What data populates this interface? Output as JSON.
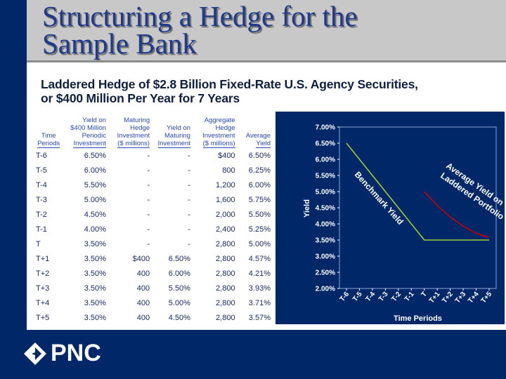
{
  "title": "Structuring a Hedge for the Sample Bank",
  "title_lines": [
    "Structuring a Hedge for the",
    "Sample Bank"
  ],
  "subtitle_lines": [
    "Laddered Hedge of $2.8 Billion Fixed-Rate U.S. Agency Securities,",
    "or $400 Million Per Year for 7 Years"
  ],
  "table": {
    "headers": [
      [
        "Time",
        "Periods"
      ],
      [
        "Yield on",
        "$400 Million",
        "Periodic",
        "Investment"
      ],
      [
        "Maturing",
        "Hedge",
        "Investment",
        "($ millions)"
      ],
      [
        "Yield on",
        "Maturing",
        "Investment"
      ],
      [
        "Aggregate",
        "Hedge",
        "Investment",
        "($ millions)"
      ],
      [
        "Average",
        "Yield"
      ]
    ],
    "rows": [
      [
        "T-6",
        "6.50%",
        "-",
        "-",
        "$400",
        "6.50%"
      ],
      [
        "T-5",
        "6.00%",
        "-",
        "-",
        "800",
        "6.25%"
      ],
      [
        "T-4",
        "5.50%",
        "-",
        "-",
        "1,200",
        "6.00%"
      ],
      [
        "T-3",
        "5.00%",
        "-",
        "-",
        "1,600",
        "5.75%"
      ],
      [
        "T-2",
        "4.50%",
        "-",
        "-",
        "2,000",
        "5.50%"
      ],
      [
        "T-1",
        "4.00%",
        "-",
        "-",
        "2,400",
        "5.25%"
      ],
      [
        "T",
        "3.50%",
        "-",
        "-",
        "2,800",
        "5.00%"
      ],
      [
        "T+1",
        "3.50%",
        "$400",
        "6.50%",
        "2,800",
        "4.57%"
      ],
      [
        "T+2",
        "3.50%",
        "400",
        "6.00%",
        "2,800",
        "4.21%"
      ],
      [
        "T+3",
        "3.50%",
        "400",
        "5.50%",
        "2,800",
        "3.93%"
      ],
      [
        "T+4",
        "3.50%",
        "400",
        "5.00%",
        "2,800",
        "3.71%"
      ],
      [
        "T+5",
        "3.50%",
        "400",
        "4.50%",
        "2,800",
        "3.57%"
      ]
    ]
  },
  "chart_data": {
    "type": "line",
    "x": [
      "T-6",
      "T-5",
      "T-4",
      "T-3",
      "T-2",
      "T-1",
      "T",
      "T+1",
      "T+2",
      "T+3",
      "T+4",
      "T+5"
    ],
    "ylim": [
      2.0,
      7.0
    ],
    "yticks": [
      "2.00%",
      "2.50%",
      "3.00%",
      "3.50%",
      "4.00%",
      "4.50%",
      "5.00%",
      "5.50%",
      "6.00%",
      "6.50%",
      "7.00%"
    ],
    "xlabel": "Time Periods",
    "ylabel": "Yield",
    "grid": false,
    "series": [
      {
        "name": "Benchmark Yield",
        "color": "#9acd32",
        "values": [
          6.5,
          6.0,
          5.5,
          5.0,
          4.5,
          4.0,
          3.5,
          3.5,
          3.5,
          3.5,
          3.5,
          3.5
        ]
      },
      {
        "name": "Average Yield on Laddered Portfolio",
        "color": "#cc0000",
        "values": [
          null,
          null,
          null,
          null,
          null,
          null,
          5.0,
          4.57,
          4.21,
          3.93,
          3.71,
          3.57
        ]
      }
    ],
    "annotations": [
      "Benchmark Yield",
      "Average Yield on",
      "Laddered Portfolio"
    ]
  },
  "brand": {
    "logo_text": "PNC",
    "navy": "#002868",
    "title_color": "#1f3a8a"
  }
}
